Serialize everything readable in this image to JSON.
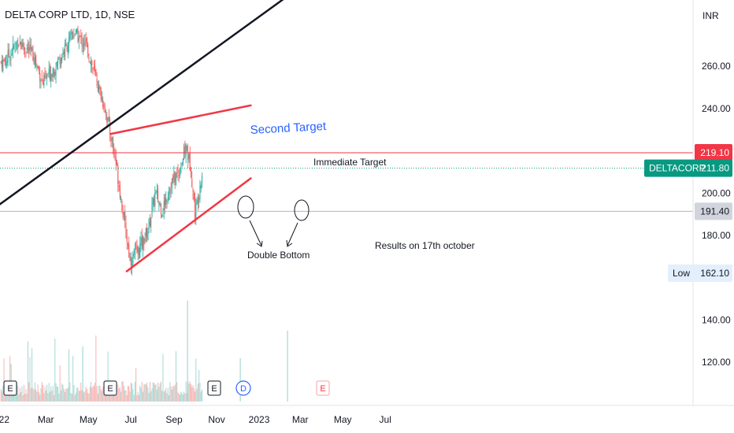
{
  "header": {
    "title": "DELTA CORP LTD, 1D, NSE"
  },
  "axis": {
    "currency": "INR"
  },
  "colors": {
    "up": "#26a69a",
    "down": "#ef5350",
    "red": "#f23645",
    "blue": "#2962ff",
    "dark": "#131722",
    "grey": "#b2b5be"
  },
  "price_tags": [
    {
      "label": "",
      "value": "219.10",
      "bg": "#f23645",
      "fg": "#ffffff",
      "price": 219.1
    },
    {
      "label": "DELTACORP",
      "value": "211.80",
      "bg": "#089981",
      "fg": "#ffffff",
      "price": 211.8
    },
    {
      "label": "",
      "value": "191.40",
      "bg": "#d1d4dc",
      "fg": "#131722",
      "price": 191.4
    },
    {
      "label": "Low",
      "value": "162.10",
      "bg": "#e3effd",
      "fg": "#131722",
      "price": 162.1
    }
  ],
  "annotations": {
    "second_target": "Second Target",
    "immediate_target": "Immediate Target",
    "double_bottom": "Double Bottom",
    "results_note": "Results on 17th october"
  },
  "events": [
    {
      "letter": "E",
      "kind": "earnings"
    },
    {
      "letter": "E",
      "kind": "earnings"
    },
    {
      "letter": "E",
      "kind": "earnings"
    },
    {
      "letter": "D",
      "kind": "dividend"
    },
    {
      "letter": "E",
      "kind": "upcoming-earnings"
    }
  ],
  "chart_data": {
    "type": "candlestick",
    "title": "DELTA CORP LTD, 1D, NSE",
    "y_unit": "INR",
    "ylim": [
      108,
      282
    ],
    "y_ticks": [
      "260.00",
      "240.00",
      "200.00",
      "180.00",
      "140.00",
      "120.00"
    ],
    "y_tick_values": [
      260,
      240,
      200,
      180,
      140,
      120
    ],
    "x_ticks": [
      "22",
      "Mar",
      "May",
      "Jul",
      "Sep",
      "Nov",
      "2023",
      "Mar",
      "May",
      "Jul"
    ],
    "grid": false,
    "close_path": [
      {
        "date": "2022-01-01",
        "price": 262
      },
      {
        "date": "2022-01-20",
        "price": 272
      },
      {
        "date": "2022-02-10",
        "price": 266
      },
      {
        "date": "2022-02-25",
        "price": 252
      },
      {
        "date": "2022-03-10",
        "price": 258
      },
      {
        "date": "2022-03-25",
        "price": 266
      },
      {
        "date": "2022-04-10",
        "price": 276
      },
      {
        "date": "2022-04-28",
        "price": 270
      },
      {
        "date": "2022-05-10",
        "price": 256
      },
      {
        "date": "2022-05-25",
        "price": 240
      },
      {
        "date": "2022-06-08",
        "price": 218
      },
      {
        "date": "2022-06-20",
        "price": 190
      },
      {
        "date": "2022-06-30",
        "price": 168
      },
      {
        "date": "2022-07-10",
        "price": 172
      },
      {
        "date": "2022-07-25",
        "price": 182
      },
      {
        "date": "2022-08-05",
        "price": 200
      },
      {
        "date": "2022-08-15",
        "price": 192
      },
      {
        "date": "2022-08-28",
        "price": 205
      },
      {
        "date": "2022-09-08",
        "price": 210
      },
      {
        "date": "2022-09-18",
        "price": 222
      },
      {
        "date": "2022-09-25",
        "price": 212
      },
      {
        "date": "2022-10-01",
        "price": 190
      },
      {
        "date": "2022-10-12",
        "price": 211.8
      }
    ],
    "horizontal_lines": [
      {
        "price": 219.1,
        "color": "#f23645"
      },
      {
        "price": 211.8,
        "color": "#089981",
        "style": "dotted"
      },
      {
        "price": 191.4,
        "color": "#b2b5be"
      }
    ],
    "trendlines": [
      {
        "from": {
          "date": "2021-12-22",
          "price": 194
        },
        "to": {
          "date": "2023-02-10",
          "price": 293
        },
        "color": "#131722"
      },
      {
        "from": {
          "date": "2022-06-02",
          "price": 228
        },
        "to": {
          "date": "2022-12-20",
          "price": 241.5
        },
        "color": "#f23645"
      },
      {
        "from": {
          "date": "2022-06-25",
          "price": 163
        },
        "to": {
          "date": "2022-12-20",
          "price": 207
        },
        "color": "#f23645"
      }
    ],
    "current_close": 211.8,
    "low": 162.1,
    "series": [
      {
        "name": "DELTACORP",
        "last": 211.8
      }
    ]
  }
}
